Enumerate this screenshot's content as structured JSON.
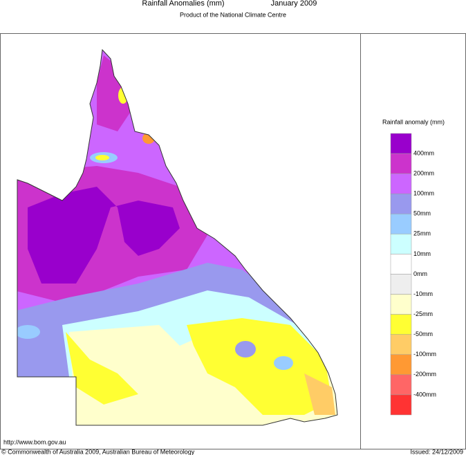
{
  "header": {
    "title": "Rainfall Anomalies (mm)",
    "period": "January 2009",
    "subtitle": "Product of the National Climate Centre"
  },
  "legend": {
    "title": "Rainfall anomaly (mm)",
    "labels": [
      "400mm",
      "200mm",
      "100mm",
      "50mm",
      "25mm",
      "10mm",
      "0mm",
      "-10mm",
      "-25mm",
      "-50mm",
      "-100mm",
      "-200mm",
      "-400mm"
    ],
    "colors": [
      "#9900cc",
      "#cc33cc",
      "#cc66ff",
      "#9999ee",
      "#99ccff",
      "#ccffff",
      "#ffffff",
      "#eeeeee",
      "#ffffcc",
      "#ffff33",
      "#ffcc66",
      "#ff9933",
      "#ff6666",
      "#ff3333"
    ]
  },
  "footer": {
    "url": "http://www.bom.gov.au",
    "copyright": "© Commonwealth of Australia 2009, Australian Bureau of Meteorology",
    "issued": "Issued: 24/12/2009"
  }
}
